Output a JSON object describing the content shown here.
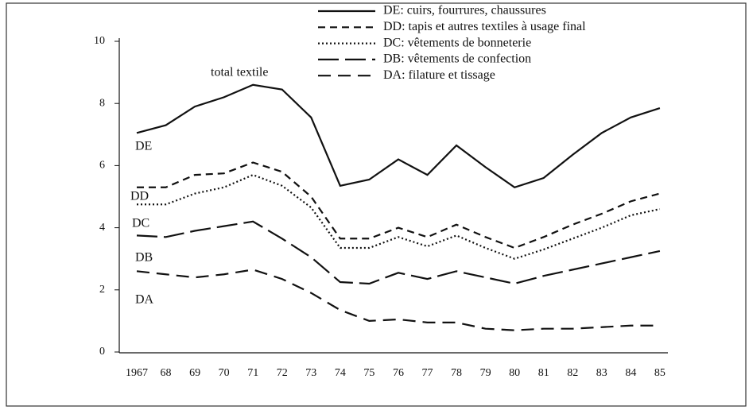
{
  "chart_data": {
    "type": "line",
    "stacked": true,
    "categories": [
      "1967",
      "68",
      "69",
      "70",
      "71",
      "72",
      "73",
      "74",
      "75",
      "76",
      "77",
      "78",
      "79",
      "80",
      "81",
      "82",
      "83",
      "84",
      "85"
    ],
    "ylim": [
      0,
      10
    ],
    "yticks": [
      0,
      2,
      4,
      6,
      8,
      10
    ],
    "annotation": "total textile",
    "series": [
      {
        "name": "DA: filature et tissage",
        "label": "DA",
        "color": "#111",
        "dash": "16 9",
        "values": [
          2.6,
          2.5,
          2.4,
          2.5,
          2.65,
          2.35,
          1.9,
          1.35,
          1.0,
          1.05,
          0.95,
          0.95,
          0.75,
          0.7,
          0.75,
          0.75,
          0.8,
          0.85,
          0.85
        ]
      },
      {
        "name": "DB: vêtements de confection",
        "label": "DB",
        "color": "#111",
        "dash": "26 8",
        "values": [
          1.15,
          1.2,
          1.5,
          1.55,
          1.55,
          1.3,
          1.15,
          0.9,
          1.2,
          1.5,
          1.4,
          1.65,
          1.65,
          1.5,
          1.7,
          1.9,
          2.05,
          2.2,
          2.4
        ]
      },
      {
        "name": "DC: vêtements de bonneterie",
        "label": "DC",
        "color": "#111",
        "dash": "2 3",
        "values": [
          1.0,
          1.05,
          1.2,
          1.25,
          1.5,
          1.7,
          1.6,
          1.1,
          1.15,
          1.15,
          1.05,
          1.15,
          0.95,
          0.8,
          0.85,
          1.0,
          1.15,
          1.35,
          1.35
        ]
      },
      {
        "name": "DD: tapis et autres textiles à usage final",
        "label": "DD",
        "color": "#111",
        "dash": "9 6",
        "values": [
          0.55,
          0.55,
          0.6,
          0.45,
          0.4,
          0.45,
          0.35,
          0.3,
          0.3,
          0.3,
          0.3,
          0.35,
          0.35,
          0.35,
          0.4,
          0.45,
          0.45,
          0.45,
          0.5
        ]
      },
      {
        "name": "DE: cuirs, fourrures, chaussures",
        "label": "DE",
        "color": "#111",
        "dash": "",
        "values": [
          1.75,
          2.0,
          2.2,
          2.45,
          2.5,
          2.65,
          2.55,
          1.7,
          1.9,
          2.2,
          2.0,
          2.55,
          2.25,
          1.95,
          1.9,
          2.25,
          2.6,
          2.7,
          2.75
        ]
      }
    ]
  }
}
